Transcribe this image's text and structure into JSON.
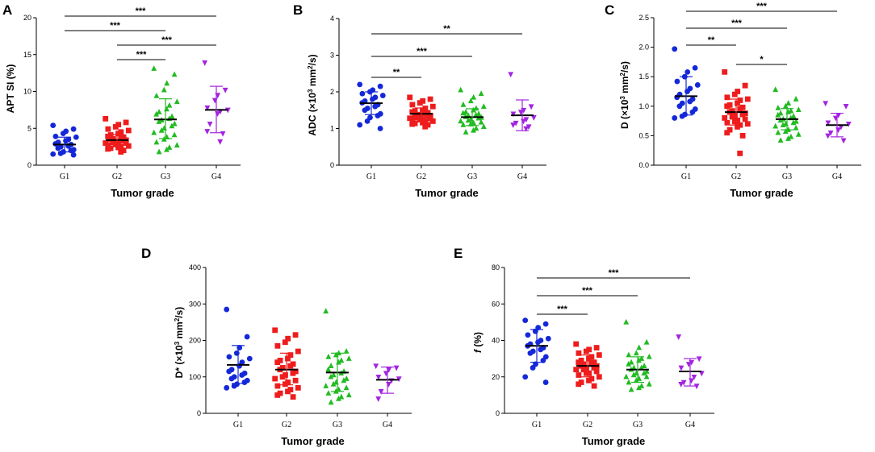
{
  "colors": {
    "G1": "#1428d8",
    "G2": "#ee1c1c",
    "G3": "#22bb22",
    "G4": "#a224e0"
  },
  "markers": {
    "G1": "circle",
    "G2": "square",
    "G3": "triangle-up",
    "G4": "triangle-down"
  },
  "chart_data": [
    {
      "type": "scatter",
      "panel": "A",
      "xlabel": "Tumor grade",
      "ylabel": "APT SI (%)",
      "ylim": [
        0,
        20
      ],
      "yticks": [
        0,
        5,
        10,
        15,
        20
      ],
      "categories": [
        "G1",
        "G2",
        "G3",
        "G4"
      ],
      "series": [
        {
          "name": "G1",
          "values": [
            5.4,
            4.9,
            4.6,
            4.3,
            3.9,
            3.8,
            3.5,
            3.3,
            3.1,
            2.9,
            2.8,
            2.6,
            2.5,
            2.3,
            2.1,
            2.0,
            1.8,
            1.6,
            1.5,
            1.4
          ],
          "mean": 2.8,
          "sd_low": 1.8,
          "sd_high": 3.8
        },
        {
          "name": "G2",
          "values": [
            6.3,
            5.8,
            5.5,
            5.2,
            4.9,
            4.7,
            4.5,
            4.3,
            4.1,
            3.9,
            3.8,
            3.7,
            3.6,
            3.5,
            3.4,
            3.3,
            3.2,
            3.1,
            3.0,
            3.0,
            2.9,
            2.8,
            2.7,
            2.6,
            2.5,
            2.4,
            2.3,
            2.2,
            2.0,
            1.8
          ],
          "mean": 3.4,
          "sd_low": 2.6,
          "sd_high": 4.2
        },
        {
          "name": "G3",
          "values": [
            13.1,
            12.3,
            11.1,
            10.2,
            9.4,
            8.6,
            8.1,
            7.6,
            7.2,
            6.9,
            6.6,
            6.3,
            6.1,
            5.9,
            5.6,
            5.3,
            5.0,
            4.7,
            4.4,
            4.1,
            3.8,
            3.5,
            3.1,
            2.7,
            2.4,
            2.1,
            1.8
          ],
          "mean": 6.2,
          "sd_low": 3.6,
          "sd_high": 9.0
        },
        {
          "name": "G4",
          "values": [
            13.9,
            10.2,
            9.5,
            8.8,
            7.8,
            7.5,
            7.3,
            7.0,
            5.6,
            4.6,
            4.3,
            3.2
          ],
          "mean": 7.5,
          "sd_low": 4.4,
          "sd_high": 10.7
        }
      ],
      "significance": [
        {
          "from": "G1",
          "to": "G4",
          "label": "***"
        },
        {
          "from": "G1",
          "to": "G3",
          "label": "***"
        },
        {
          "from": "G2",
          "to": "G4",
          "label": "***"
        },
        {
          "from": "G2",
          "to": "G3",
          "label": "***"
        }
      ]
    },
    {
      "type": "scatter",
      "panel": "B",
      "xlabel": "Tumor grade",
      "ylabel_parts": [
        "ADC (×10",
        "3",
        " mm",
        "2",
        "/s)"
      ],
      "ylim": [
        0,
        4
      ],
      "yticks": [
        0,
        1,
        2,
        3,
        4
      ],
      "categories": [
        "G1",
        "G2",
        "G3",
        "G4"
      ],
      "series": [
        {
          "name": "G1",
          "values": [
            2.2,
            2.15,
            2.05,
            2.0,
            1.95,
            1.9,
            1.85,
            1.8,
            1.75,
            1.7,
            1.65,
            1.6,
            1.55,
            1.5,
            1.4,
            1.35,
            1.3,
            1.2,
            1.1,
            1.0
          ],
          "mean": 1.69,
          "sd_low": 1.38,
          "sd_high": 2.0
        },
        {
          "name": "G2",
          "values": [
            1.85,
            1.8,
            1.75,
            1.7,
            1.65,
            1.6,
            1.55,
            1.5,
            1.48,
            1.45,
            1.43,
            1.4,
            1.38,
            1.36,
            1.35,
            1.33,
            1.32,
            1.3,
            1.28,
            1.27,
            1.25,
            1.24,
            1.22,
            1.2,
            1.18,
            1.16,
            1.14,
            1.12,
            1.1,
            1.05
          ],
          "mean": 1.4,
          "sd_low": 1.24,
          "sd_high": 1.56
        },
        {
          "name": "G3",
          "values": [
            2.05,
            1.95,
            1.85,
            1.75,
            1.65,
            1.6,
            1.55,
            1.5,
            1.45,
            1.42,
            1.4,
            1.37,
            1.35,
            1.32,
            1.3,
            1.28,
            1.25,
            1.22,
            1.2,
            1.17,
            1.15,
            1.12,
            1.1,
            1.05,
            1.0,
            0.95,
            0.9
          ],
          "mean": 1.31,
          "sd_low": 1.08,
          "sd_high": 1.54
        },
        {
          "name": "G4",
          "values": [
            2.48,
            1.6,
            1.5,
            1.45,
            1.4,
            1.3,
            1.25,
            1.2,
            1.15,
            1.1,
            1.05,
            1.0
          ],
          "mean": 1.36,
          "sd_low": 0.94,
          "sd_high": 1.78
        }
      ],
      "significance": [
        {
          "from": "G1",
          "to": "G4",
          "label": "**"
        },
        {
          "from": "G1",
          "to": "G3",
          "label": "***"
        },
        {
          "from": "G1",
          "to": "G2",
          "label": "**"
        }
      ]
    },
    {
      "type": "scatter",
      "panel": "C",
      "xlabel": "Tumor grade",
      "ylabel_parts": [
        "D (×10",
        "3",
        " mm",
        "2",
        "/s)"
      ],
      "ylim": [
        0,
        2.5
      ],
      "yticks": [
        0.0,
        0.5,
        1.0,
        1.5,
        2.0,
        2.5
      ],
      "yticks_labels": [
        "0.0",
        "0.5",
        "1.0",
        "1.5",
        "2.0",
        "2.5"
      ],
      "categories": [
        "G1",
        "G2",
        "G3",
        "G4"
      ],
      "series": [
        {
          "name": "G1",
          "values": [
            1.97,
            1.65,
            1.58,
            1.5,
            1.42,
            1.36,
            1.3,
            1.25,
            1.2,
            1.15,
            1.12,
            1.08,
            1.05,
            1.0,
            0.95,
            0.9,
            0.86,
            0.83,
            0.8
          ],
          "mean": 1.17,
          "sd_low": 0.85,
          "sd_high": 1.5
        },
        {
          "name": "G2",
          "values": [
            1.58,
            1.35,
            1.25,
            1.2,
            1.15,
            1.12,
            1.1,
            1.05,
            1.02,
            1.0,
            0.98,
            0.95,
            0.92,
            0.9,
            0.88,
            0.86,
            0.84,
            0.82,
            0.8,
            0.78,
            0.76,
            0.74,
            0.72,
            0.7,
            0.68,
            0.65,
            0.6,
            0.55,
            0.5,
            0.2
          ],
          "mean": 0.9,
          "sd_low": 0.68,
          "sd_high": 1.12
        },
        {
          "name": "G3",
          "values": [
            1.28,
            1.12,
            1.05,
            1.0,
            0.97,
            0.94,
            0.92,
            0.9,
            0.88,
            0.85,
            0.83,
            0.8,
            0.78,
            0.76,
            0.74,
            0.72,
            0.7,
            0.68,
            0.66,
            0.63,
            0.6,
            0.57,
            0.55,
            0.52,
            0.48,
            0.45,
            0.42
          ],
          "mean": 0.78,
          "sd_low": 0.6,
          "sd_high": 0.96
        },
        {
          "name": "G4",
          "values": [
            1.05,
            1.0,
            0.85,
            0.8,
            0.72,
            0.7,
            0.65,
            0.6,
            0.55,
            0.5,
            0.42
          ],
          "mean": 0.68,
          "sd_low": 0.48,
          "sd_high": 0.88
        }
      ],
      "significance": [
        {
          "from": "G1",
          "to": "G4",
          "label": "***"
        },
        {
          "from": "G1",
          "to": "G3",
          "label": "***"
        },
        {
          "from": "G1",
          "to": "G2",
          "label": "**"
        },
        {
          "from": "G2",
          "to": "G3",
          "label": "*"
        }
      ]
    },
    {
      "type": "scatter",
      "panel": "D",
      "xlabel": "Tumor grade",
      "ylabel_parts": [
        "D* (×10",
        "3",
        " mm",
        "2",
        "/s)"
      ],
      "ylim": [
        0,
        400
      ],
      "yticks": [
        0,
        100,
        200,
        300,
        400
      ],
      "categories": [
        "G1",
        "G2",
        "G3",
        "G4"
      ],
      "series": [
        {
          "name": "G1",
          "values": [
            285,
            210,
            180,
            165,
            155,
            150,
            140,
            130,
            120,
            115,
            110,
            105,
            100,
            95,
            90,
            85,
            80,
            75,
            70
          ],
          "mean": 133,
          "sd_low": 82,
          "sd_high": 186
        },
        {
          "name": "G2",
          "values": [
            228,
            215,
            205,
            195,
            185,
            170,
            160,
            150,
            145,
            140,
            135,
            130,
            125,
            120,
            115,
            110,
            105,
            100,
            95,
            90,
            85,
            80,
            75,
            70,
            65,
            60,
            55,
            50,
            45
          ],
          "mean": 120,
          "sd_low": 78,
          "sd_high": 165
        },
        {
          "name": "G3",
          "values": [
            280,
            170,
            165,
            160,
            155,
            150,
            145,
            140,
            130,
            120,
            115,
            110,
            105,
            100,
            95,
            90,
            85,
            80,
            75,
            70,
            65,
            60,
            55,
            50,
            45,
            40,
            30
          ],
          "mean": 112,
          "sd_low": 60,
          "sd_high": 165
        },
        {
          "name": "G4",
          "values": [
            130,
            125,
            120,
            110,
            100,
            95,
            90,
            80,
            60,
            40
          ],
          "mean": 92,
          "sd_low": 55,
          "sd_high": 127
        }
      ],
      "significance": []
    },
    {
      "type": "scatter",
      "panel": "E",
      "xlabel": "Tumor grade",
      "ylabel_parts": [
        "f",
        " (%)"
      ],
      "ylim": [
        0,
        80
      ],
      "yticks": [
        0,
        20,
        40,
        60,
        80
      ],
      "categories": [
        "G1",
        "G2",
        "G3",
        "G4"
      ],
      "series": [
        {
          "name": "G1",
          "values": [
            51,
            49,
            47,
            45,
            43,
            41,
            40,
            39,
            38,
            37,
            36,
            35,
            34,
            33,
            31,
            29,
            27,
            25,
            20,
            17
          ],
          "mean": 37,
          "sd_low": 28,
          "sd_high": 46
        },
        {
          "name": "G2",
          "values": [
            38,
            36,
            35,
            34,
            33,
            32,
            31,
            30,
            29,
            28,
            28,
            27,
            27,
            26,
            26,
            25,
            25,
            24,
            24,
            23,
            22,
            22,
            21,
            20,
            19,
            18,
            17,
            16,
            15
          ],
          "mean": 26,
          "sd_low": 20,
          "sd_high": 32
        },
        {
          "name": "G3",
          "values": [
            50,
            39,
            36,
            33,
            32,
            31,
            30,
            29,
            28,
            27,
            26,
            25,
            25,
            24,
            23,
            22,
            22,
            21,
            20,
            20,
            19,
            18,
            17,
            16,
            15,
            14,
            13
          ],
          "mean": 24,
          "sd_low": 17,
          "sd_high": 31
        },
        {
          "name": "G4",
          "values": [
            42,
            30,
            28,
            27,
            25,
            22,
            20,
            18,
            17,
            16,
            15
          ],
          "mean": 23,
          "sd_low": 15,
          "sd_high": 30
        }
      ],
      "significance": [
        {
          "from": "G1",
          "to": "G4",
          "label": "***"
        },
        {
          "from": "G1",
          "to": "G3",
          "label": "***"
        },
        {
          "from": "G1",
          "to": "G2",
          "label": "***"
        }
      ]
    }
  ]
}
